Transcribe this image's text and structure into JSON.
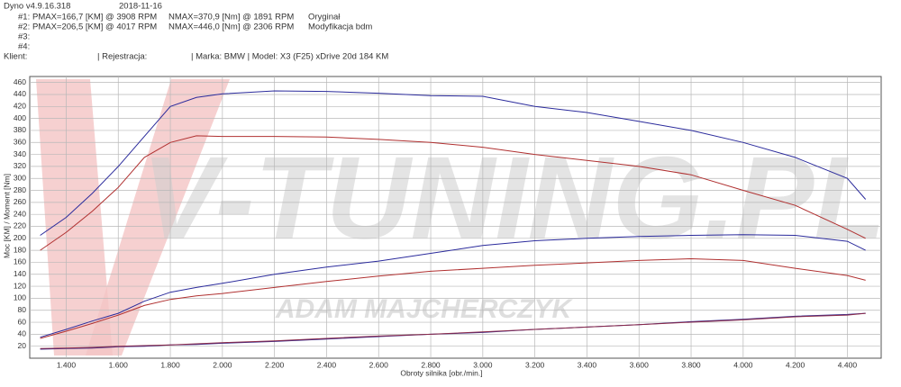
{
  "header": {
    "app": "Dyno v4.9.16.318",
    "date": "2018-11-16",
    "runs": [
      {
        "label": "#1:",
        "power": "PMAX=166,7 [KM] @ 3908 RPM",
        "torque": "NMAX=370,9 [Nm] @ 1891 RPM",
        "desc": "Oryginał"
      },
      {
        "label": "#2:",
        "power": "PMAX=206,5 [KM] @ 4017 RPM",
        "torque": "NMAX=446,0 [Nm] @ 2306 RPM",
        "desc": "Modyfikacja bdm"
      },
      {
        "label": "#3:"
      },
      {
        "label": "#4:"
      }
    ],
    "client": "Klient:",
    "registration": "| Rejestracja:",
    "car": "| Marka: BMW | Model: X3 (F25) xDrive 20d 184 KM"
  },
  "chart_data": {
    "type": "line",
    "watermark": [
      "V-TUNING.PL",
      "ADAM MAJCHERCZYK"
    ],
    "ylabel": "Moc [KM] / Moment [Nm]",
    "xlabel": "Obroty silnika [obr./min.]",
    "xlim": [
      1260,
      4530
    ],
    "ylim": [
      0,
      470
    ],
    "xticks": [
      {
        "value": 1400,
        "label": "1.400"
      },
      {
        "value": 1600,
        "label": "1.600"
      },
      {
        "value": 1800,
        "label": "1.800"
      },
      {
        "value": 2000,
        "label": "2.000"
      },
      {
        "value": 2200,
        "label": "2.200"
      },
      {
        "value": 2400,
        "label": "2.400"
      },
      {
        "value": 2600,
        "label": "2.600"
      },
      {
        "value": 2800,
        "label": "2.800"
      },
      {
        "value": 3000,
        "label": "3.000"
      },
      {
        "value": 3200,
        "label": "3.200"
      },
      {
        "value": 3400,
        "label": "3.400"
      },
      {
        "value": 3600,
        "label": "3.600"
      },
      {
        "value": 3800,
        "label": "3.800"
      },
      {
        "value": 4000,
        "label": "4.000"
      },
      {
        "value": 4200,
        "label": "4.200"
      },
      {
        "value": 4400,
        "label": "4.400"
      }
    ],
    "yticks": [
      20,
      40,
      60,
      80,
      100,
      120,
      140,
      160,
      180,
      200,
      220,
      240,
      260,
      280,
      300,
      320,
      340,
      360,
      380,
      400,
      420,
      440,
      460
    ],
    "grid": true,
    "x": [
      1300,
      1400,
      1500,
      1600,
      1700,
      1800,
      1900,
      2000,
      2200,
      2400,
      2600,
      2800,
      3000,
      3200,
      3400,
      3600,
      3800,
      4000,
      4200,
      4400,
      4470
    ],
    "series": [
      {
        "color": "#2b2b9c",
        "values": [
          205,
          235,
          275,
          320,
          370,
          420,
          435,
          441,
          446,
          445,
          442,
          438,
          437,
          420,
          410,
          395,
          380,
          360,
          335,
          300,
          265
        ]
      },
      {
        "color": "#b03030",
        "values": [
          180,
          210,
          245,
          285,
          335,
          360,
          371,
          370,
          370,
          369,
          365,
          360,
          352,
          340,
          330,
          320,
          306,
          280,
          255,
          215,
          200
        ]
      },
      {
        "color": "#2b2b9c",
        "values": [
          35,
          48,
          62,
          75,
          95,
          110,
          118,
          125,
          140,
          152,
          162,
          175,
          188,
          196,
          200,
          203,
          205,
          206,
          205,
          195,
          180
        ]
      },
      {
        "color": "#b03030",
        "values": [
          33,
          45,
          58,
          72,
          88,
          98,
          104,
          108,
          118,
          128,
          137,
          145,
          150,
          155,
          159,
          163,
          166,
          163,
          150,
          138,
          130
        ]
      },
      {
        "color": "#3a2a8a",
        "values": [
          15,
          16,
          17,
          19,
          20,
          22,
          23,
          25,
          28,
          32,
          36,
          40,
          43,
          48,
          52,
          56,
          61,
          65,
          70,
          73,
          75
        ]
      },
      {
        "color": "#8a2a4a",
        "values": [
          16,
          17,
          18,
          20,
          21,
          22,
          24,
          26,
          29,
          33,
          37,
          40,
          44,
          48,
          52,
          56,
          60,
          64,
          69,
          72,
          75
        ]
      }
    ]
  }
}
